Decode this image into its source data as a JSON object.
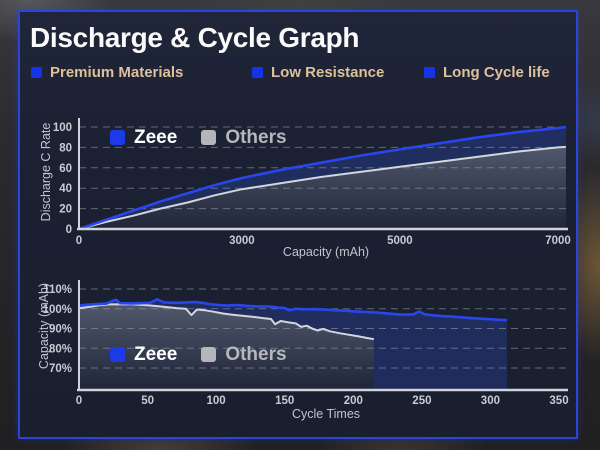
{
  "header": {
    "title": "Discharge & Cycle Graph",
    "features": [
      {
        "label": "Premium Materials"
      },
      {
        "label": "Low Resistance"
      },
      {
        "label": "Long Cycle life"
      }
    ],
    "bullet_icon": "blue-square",
    "bullet_color": "#1634e6",
    "feature_text_color": "#ddc19c"
  },
  "colors": {
    "panel_background": "#1b2132",
    "panel_border": "#2c44d8",
    "zeee_line": "#2946ec",
    "others_line": "#d2d6dd",
    "legend_zeee_swatch": "#1d3ae8",
    "legend_others_swatch": "#b4b6ba",
    "gridline": "#9099a8",
    "axis": "#cfd3da",
    "tick_text": "#c6cbd4"
  },
  "chart_data": [
    {
      "type": "line",
      "title": "",
      "xlabel": "Capacity (mAh)",
      "ylabel": "Discharge C Rate",
      "x_ticks": [
        0,
        3000,
        5000,
        7000
      ],
      "x_tick_labels": [
        "0",
        "3000",
        "5000",
        "7000"
      ],
      "x_axis_note": "ticks 0/3000/5000/7000 drawn equally spaced (non-linear axis)",
      "y_tick_values": [
        0,
        20,
        40,
        60,
        80,
        100
      ],
      "y_tick_labels": [
        "0",
        "20",
        "40",
        "60",
        "80",
        "100"
      ],
      "ylim": [
        0,
        100
      ],
      "grid": "dashed-horizontal",
      "legend_position": "top-left-inside",
      "legend": [
        {
          "name": "Zeee",
          "color": "#1d3ae8"
        },
        {
          "name": "Others",
          "color": "#b4b6ba"
        }
      ],
      "series": [
        {
          "name": "Zeee",
          "color": "#2946ec",
          "points": [
            [
              0,
              0
            ],
            [
              500,
              9
            ],
            [
              1000,
              18
            ],
            [
              1500,
              27
            ],
            [
              2000,
              35
            ],
            [
              2500,
              43
            ],
            [
              3000,
              50
            ],
            [
              3500,
              58
            ],
            [
              4000,
              65
            ],
            [
              4500,
              72
            ],
            [
              5000,
              78
            ],
            [
              5500,
              84
            ],
            [
              6000,
              90
            ],
            [
              6500,
              95
            ],
            [
              7000,
              99
            ],
            [
              7100,
              100
            ]
          ]
        },
        {
          "name": "Others",
          "color": "#d2d6dd",
          "points": [
            [
              0,
              0
            ],
            [
              500,
              7
            ],
            [
              1000,
              13
            ],
            [
              1500,
              20
            ],
            [
              2000,
              26
            ],
            [
              2500,
              33
            ],
            [
              3000,
              39
            ],
            [
              3500,
              45
            ],
            [
              4000,
              51
            ],
            [
              4500,
              56
            ],
            [
              5000,
              61
            ],
            [
              5500,
              66
            ],
            [
              6000,
              71
            ],
            [
              6500,
              76
            ],
            [
              7000,
              80
            ],
            [
              7100,
              80.5
            ]
          ]
        }
      ]
    },
    {
      "type": "line",
      "title": "",
      "xlabel": "Cycle Times",
      "ylabel": "Capacity (mAh)",
      "x_ticks": [
        0,
        50,
        100,
        150,
        200,
        250,
        300,
        350
      ],
      "x_tick_labels": [
        "0",
        "50",
        "100",
        "150",
        "200",
        "250",
        "300",
        "350"
      ],
      "y_tick_values": [
        70,
        80,
        90,
        100,
        110
      ],
      "y_tick_labels": [
        "70%",
        "80%",
        "90%",
        "100%",
        "110%"
      ],
      "ylim": [
        70,
        110
      ],
      "xlim": [
        0,
        350
      ],
      "grid": "dashed-horizontal",
      "legend_position": "bottom-left-inside",
      "legend": [
        {
          "name": "Zeee",
          "color": "#1d3ae8"
        },
        {
          "name": "Others",
          "color": "#b4b6ba"
        }
      ],
      "series": [
        {
          "name": "Zeee",
          "color": "#2946ec",
          "points": [
            [
              0,
              101.5
            ],
            [
              5,
              102
            ],
            [
              12,
              102.3
            ],
            [
              20,
              102.6
            ],
            [
              27,
              104.6
            ],
            [
              30,
              102.8
            ],
            [
              38,
              102.7
            ],
            [
              45,
              102.8
            ],
            [
              52,
              103
            ],
            [
              57,
              104.8
            ],
            [
              62,
              103.2
            ],
            [
              70,
              103
            ],
            [
              78,
              103.2
            ],
            [
              85,
              103.4
            ],
            [
              90,
              103
            ],
            [
              95,
              102.4
            ],
            [
              100,
              102
            ],
            [
              108,
              101.6
            ],
            [
              115,
              101.9
            ],
            [
              122,
              101.5
            ],
            [
              130,
              101.2
            ],
            [
              138,
              101.2
            ],
            [
              145,
              100.6
            ],
            [
              150,
              100.4
            ],
            [
              153,
              99.2
            ],
            [
              158,
              100
            ],
            [
              165,
              99.7
            ],
            [
              172,
              99.8
            ],
            [
              180,
              99.5
            ],
            [
              188,
              99.2
            ],
            [
              195,
              99
            ],
            [
              200,
              98.7
            ],
            [
              208,
              98.4
            ],
            [
              215,
              98.2
            ],
            [
              222,
              97.8
            ],
            [
              230,
              97.3
            ],
            [
              237,
              97
            ],
            [
              244,
              97.2
            ],
            [
              248,
              98.6
            ],
            [
              252,
              97.2
            ],
            [
              258,
              96.7
            ],
            [
              265,
              96.3
            ],
            [
              272,
              96
            ],
            [
              280,
              95.6
            ],
            [
              287,
              95.2
            ],
            [
              294,
              94.9
            ],
            [
              300,
              94.7
            ],
            [
              306,
              94.4
            ],
            [
              312,
              94.2
            ]
          ]
        },
        {
          "name": "Others",
          "color": "#d2d6dd",
          "points": [
            [
              0,
              100.3
            ],
            [
              8,
              101
            ],
            [
              15,
              101.8
            ],
            [
              22,
              102.2
            ],
            [
              30,
              102.3
            ],
            [
              40,
              102.2
            ],
            [
              50,
              101.8
            ],
            [
              58,
              101.3
            ],
            [
              65,
              100.8
            ],
            [
              72,
              100.3
            ],
            [
              78,
              100
            ],
            [
              82,
              96.8
            ],
            [
              86,
              99.6
            ],
            [
              92,
              99.2
            ],
            [
              98,
              98.5
            ],
            [
              105,
              97.6
            ],
            [
              112,
              97
            ],
            [
              120,
              96.4
            ],
            [
              128,
              95.8
            ],
            [
              135,
              95.2
            ],
            [
              140,
              94.8
            ],
            [
              143,
              92.2
            ],
            [
              147,
              93.8
            ],
            [
              152,
              93.2
            ],
            [
              158,
              92.6
            ],
            [
              162,
              90.8
            ],
            [
              166,
              91.4
            ],
            [
              170,
              90
            ],
            [
              174,
              89
            ],
            [
              178,
              89.8
            ],
            [
              183,
              88.6
            ],
            [
              190,
              87.6
            ],
            [
              197,
              86.8
            ],
            [
              204,
              86
            ],
            [
              210,
              85.2
            ],
            [
              215,
              84.6
            ]
          ]
        }
      ]
    }
  ]
}
